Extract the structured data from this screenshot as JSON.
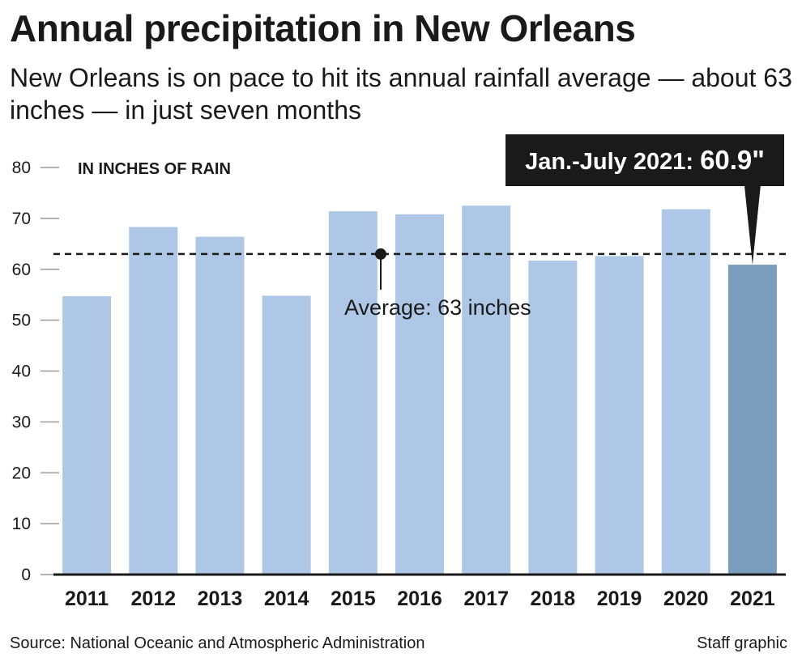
{
  "title": "Annual precipitation in New Orleans",
  "subtitle": "New Orleans is on pace to hit its annual rainfall average — about 63 inches — in just seven months",
  "source": "Source: National Oceanic and Atmospheric Administration",
  "credit": "Staff graphic",
  "colors": {
    "bar": "#afc7e7",
    "highlight_bar": "#7a9dbc",
    "text": "#1a1a1a",
    "callout_bg": "#1a1a1a"
  },
  "chart_data": {
    "type": "bar",
    "ylabel": "IN INCHES OF RAIN",
    "categories": [
      "2011",
      "2012",
      "2013",
      "2014",
      "2015",
      "2016",
      "2017",
      "2018",
      "2019",
      "2020",
      "2021"
    ],
    "values": [
      54.7,
      68.3,
      66.4,
      54.8,
      71.4,
      70.8,
      72.5,
      61.7,
      62.6,
      71.8,
      60.9
    ],
    "highlight_category": "2021",
    "ylim": [
      0,
      80
    ],
    "yticks": [
      0,
      10,
      20,
      30,
      40,
      50,
      60,
      70,
      80
    ],
    "grid": false,
    "reference_line": {
      "value": 63,
      "label": "Average: 63 inches"
    },
    "callout": {
      "category": "2021",
      "label": "Jan.-July 2021:",
      "value_label": "60.9\""
    }
  }
}
